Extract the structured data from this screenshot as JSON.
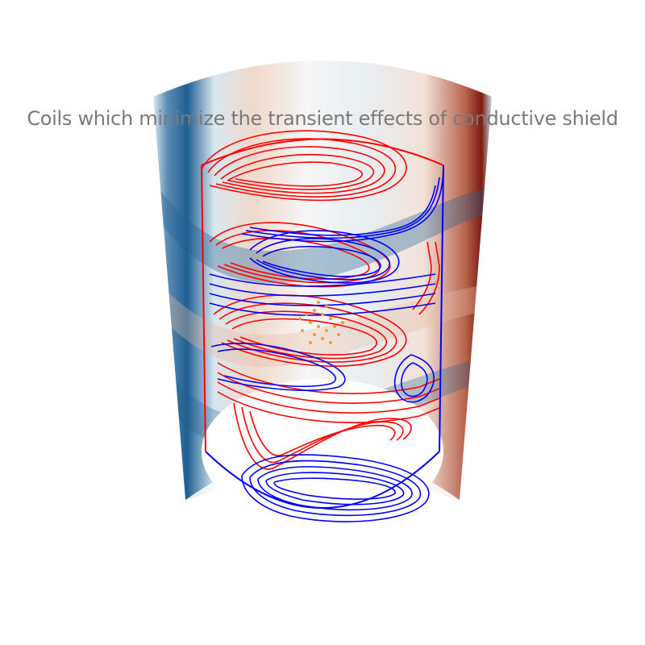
{
  "title": "Coils which minimize the transient effects of conductive shield",
  "colors": {
    "coil_positive": "#ff0000",
    "coil_negative": "#0000ff",
    "shield_negative": "#1f5f93",
    "shield_neutral": "#f2f2f2",
    "shield_positive": "#7b1c12",
    "target_points": "#f0a020"
  }
}
